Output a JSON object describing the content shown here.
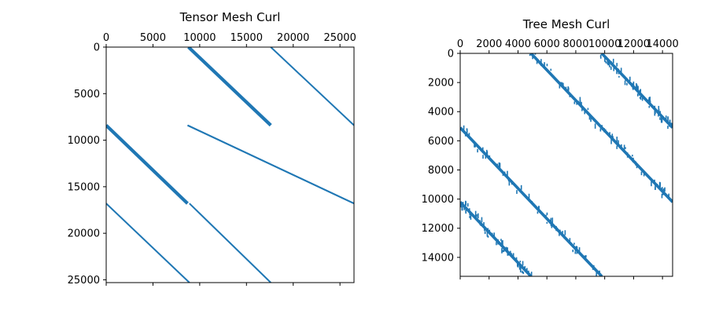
{
  "colors": {
    "mark": "#1f77b4",
    "axis": "#000000",
    "background": "#ffffff"
  },
  "chart_data": [
    {
      "type": "heatmap",
      "subtype": "sparsity-pattern",
      "title": "Tensor Mesh Curl",
      "xlim": [
        0,
        26500
      ],
      "ylim": [
        0,
        25300
      ],
      "y_inverted": true,
      "x_axis_position": "top",
      "xticks": [
        0,
        5000,
        10000,
        15000,
        20000,
        25000
      ],
      "xtick_labels": [
        "0",
        "5000",
        "10000",
        "15000",
        "20000",
        "25000"
      ],
      "yticks": [
        0,
        5000,
        10000,
        15000,
        20000,
        25000
      ],
      "ytick_labels": [
        "0",
        "5000",
        "10000",
        "15000",
        "20000",
        "25000"
      ],
      "bottom_ticks": [
        0,
        5000,
        10000,
        15000,
        20000,
        25000
      ],
      "bands": [
        {
          "x0": 8800,
          "y0": 0,
          "x1": 17600,
          "y1": 8400,
          "thickness": 360
        },
        {
          "x0": 17600,
          "y0": 0,
          "x1": 26500,
          "y1": 8400,
          "thickness": 160
        },
        {
          "x0": 0,
          "y0": 8400,
          "x1": 8700,
          "y1": 16800,
          "thickness": 360
        },
        {
          "x0": 8700,
          "y0": 8400,
          "x1": 26500,
          "y1": 16800,
          "thickness": 180
        },
        {
          "x0": 0,
          "y0": 16800,
          "x1": 8900,
          "y1": 25300,
          "thickness": 170
        },
        {
          "x0": 8900,
          "y0": 16800,
          "x1": 17600,
          "y1": 25300,
          "thickness": 170
        }
      ]
    },
    {
      "type": "heatmap",
      "subtype": "sparsity-pattern",
      "title": "Tree Mesh Curl",
      "xlim": [
        0,
        14700
      ],
      "ylim": [
        0,
        15300
      ],
      "y_inverted": true,
      "x_axis_position": "top",
      "xticks": [
        0,
        2000,
        4000,
        6000,
        8000,
        10000,
        12000,
        14000
      ],
      "xtick_labels": [
        "0",
        "2000",
        "4000",
        "6000",
        "8000",
        "10000",
        "12000",
        "14000"
      ],
      "yticks": [
        0,
        2000,
        4000,
        6000,
        8000,
        10000,
        12000,
        14000
      ],
      "ytick_labels": [
        "0",
        "2000",
        "4000",
        "6000",
        "8000",
        "10000",
        "12000",
        "14000"
      ],
      "bottom_ticks": [
        0,
        2000,
        4000,
        6000,
        8000,
        10000,
        12000,
        14000
      ],
      "bands": [
        {
          "x0": 4900,
          "y0": 0,
          "x1": 14700,
          "y1": 10200,
          "thickness": 200,
          "jitter": 160
        },
        {
          "x0": 9800,
          "y0": 0,
          "x1": 14700,
          "y1": 5100,
          "thickness": 200,
          "jitter": 160
        },
        {
          "x0": 0,
          "y0": 5100,
          "x1": 9800,
          "y1": 15300,
          "thickness": 200,
          "jitter": 160
        },
        {
          "x0": 0,
          "y0": 10200,
          "x1": 4900,
          "y1": 15300,
          "thickness": 200,
          "jitter": 160
        }
      ]
    }
  ]
}
